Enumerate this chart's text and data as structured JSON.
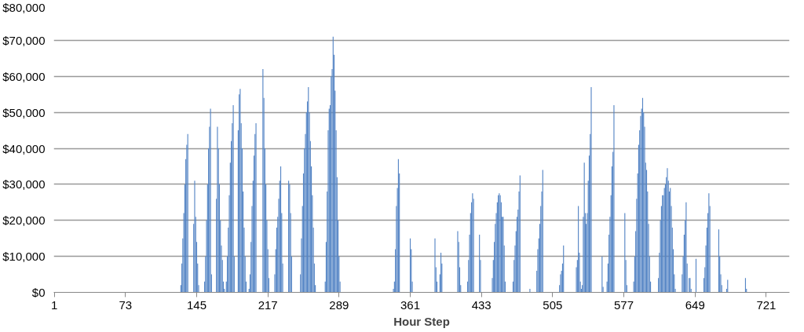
{
  "chart_data": {
    "type": "bar",
    "xlabel": "Hour Step",
    "color": "#5585c5",
    "grid": "y",
    "xlim": [
      0.5,
      744.5
    ],
    "xticks": [
      1,
      73,
      145,
      217,
      289,
      361,
      433,
      505,
      577,
      649,
      721
    ],
    "ylim": [
      0,
      80000
    ],
    "yticks": [
      {
        "value": 0,
        "label": "$0"
      },
      {
        "value": 10000,
        "label": "$10,000"
      },
      {
        "value": 20000,
        "label": "$20,000"
      },
      {
        "value": 30000,
        "label": "$30,000"
      },
      {
        "value": 40000,
        "label": "$40,000"
      },
      {
        "value": 50000,
        "label": "$50,000"
      },
      {
        "value": 60000,
        "label": "$60,000"
      },
      {
        "value": 70000,
        "label": "$70,000"
      },
      {
        "value": 80000,
        "label": "$80,000"
      }
    ],
    "x": [
      129,
      130,
      131,
      132,
      133,
      134,
      135,
      136,
      142,
      143,
      144,
      145,
      146,
      147,
      153,
      154,
      155,
      156,
      157,
      158,
      159,
      160,
      165,
      166,
      167,
      168,
      169,
      170,
      171,
      172,
      173,
      175,
      176,
      177,
      178,
      179,
      180,
      181,
      182,
      183,
      187,
      188,
      189,
      190,
      191,
      192,
      193,
      194,
      195,
      198,
      199,
      200,
      201,
      202,
      203,
      204,
      205,
      212,
      213,
      214,
      215,
      216,
      217,
      218,
      224,
      225,
      226,
      227,
      228,
      229,
      230,
      231,
      232,
      238,
      239,
      240,
      241,
      250,
      251,
      252,
      253,
      254,
      255,
      256,
      257,
      258,
      259,
      260,
      261,
      262,
      263,
      264,
      265,
      275,
      276,
      277,
      278,
      279,
      280,
      281,
      282,
      283,
      284,
      285,
      286,
      287,
      288,
      289,
      290,
      344,
      345,
      346,
      347,
      348,
      349,
      350,
      361,
      362,
      363,
      386,
      387,
      388,
      391,
      392,
      393,
      409,
      410,
      411,
      412,
      419,
      420,
      421,
      422,
      423,
      424,
      425,
      431,
      432,
      444,
      445,
      446,
      447,
      448,
      449,
      450,
      451,
      452,
      453,
      454,
      455,
      456,
      457,
      465,
      466,
      467,
      468,
      469,
      470,
      471,
      472,
      482,
      489,
      490,
      491,
      492,
      493,
      494,
      495,
      512,
      513,
      514,
      515,
      516,
      529,
      530,
      531,
      532,
      533,
      534,
      535,
      536,
      537,
      538,
      539,
      540,
      541,
      542,
      543,
      544,
      555,
      556,
      560,
      561,
      562,
      563,
      564,
      565,
      566,
      567,
      578,
      579,
      580,
      587,
      588,
      589,
      590,
      591,
      592,
      593,
      594,
      595,
      596,
      597,
      598,
      599,
      600,
      601,
      602,
      603,
      604,
      612,
      613,
      614,
      615,
      616,
      617,
      618,
      619,
      620,
      621,
      622,
      623,
      624,
      625,
      626,
      627,
      628,
      629,
      636,
      637,
      638,
      639,
      640,
      641,
      643,
      644,
      645,
      650,
      658,
      659,
      660,
      661,
      662,
      663,
      664,
      673,
      674,
      675,
      676,
      681,
      682,
      700,
      701
    ],
    "values": [
      2000,
      8000,
      15000,
      22000,
      30000,
      37000,
      41000,
      44000,
      19000,
      31000,
      21000,
      14000,
      8000,
      2000,
      3000,
      10000,
      20000,
      30000,
      40000,
      46000,
      51000,
      5000,
      26000,
      46000,
      40000,
      30000,
      20000,
      13000,
      9000,
      3000,
      1000,
      3000,
      10000,
      18000,
      27000,
      36000,
      42000,
      47000,
      52000,
      10000,
      45000,
      55000,
      56500,
      47000,
      40000,
      28000,
      18000,
      10000,
      3000,
      1000,
      5000,
      14000,
      24000,
      31000,
      38000,
      44000,
      47000,
      62000,
      54000,
      40000,
      30000,
      20000,
      12000,
      4000,
      5000,
      12000,
      18000,
      21000,
      26000,
      31000,
      35000,
      22000,
      8000,
      31000,
      30000,
      22000,
      10000,
      5000,
      15000,
      24000,
      33000,
      40000,
      44000,
      50000,
      53000,
      57000,
      50000,
      42000,
      35000,
      27000,
      18000,
      8000,
      2000,
      3000,
      14000,
      28000,
      45000,
      51000,
      52000,
      60000,
      62000,
      71000,
      66000,
      56000,
      45000,
      32000,
      20000,
      10000,
      3000,
      1000,
      3000,
      12000,
      24000,
      29000,
      37000,
      33000,
      15000,
      12000,
      3000,
      15000,
      7000,
      3000,
      5000,
      11000,
      8000,
      17000,
      14000,
      7000,
      2000,
      3000,
      9000,
      16000,
      22000,
      25000,
      27500,
      26000,
      16000,
      9000,
      4000,
      9000,
      14000,
      19000,
      22000,
      25000,
      27000,
      27500,
      27000,
      25000,
      21000,
      21000,
      13000,
      3000,
      3000,
      9000,
      13000,
      17000,
      21000,
      23000,
      28000,
      32500,
      1000,
      6000,
      12000,
      15000,
      19000,
      24000,
      28000,
      34000,
      2000,
      5000,
      6000,
      8000,
      13000,
      7000,
      9000,
      24000,
      11000,
      3000,
      1000,
      2000,
      21000,
      36000,
      22000,
      19000,
      22000,
      31000,
      38000,
      44000,
      57000,
      10000,
      1500,
      3000,
      8000,
      16000,
      21000,
      27000,
      35000,
      39000,
      52000,
      22000,
      9000,
      2000,
      3000,
      10000,
      17000,
      26000,
      33000,
      41000,
      45000,
      49000,
      51000,
      54000,
      50000,
      46000,
      36000,
      34000,
      28000,
      19000,
      10000,
      3000,
      4000,
      11000,
      20000,
      24000,
      27000,
      27000,
      29000,
      30000,
      32000,
      34500,
      31000,
      28000,
      29000,
      24000,
      18000,
      12000,
      5000,
      1000,
      5000,
      10000,
      16000,
      20000,
      25000,
      8000,
      4000,
      4000,
      1000,
      9300,
      4000,
      7000,
      13000,
      18000,
      22000,
      27500,
      24000,
      17500,
      10000,
      5000,
      2000,
      1000,
      3500,
      4000,
      1000
    ]
  }
}
